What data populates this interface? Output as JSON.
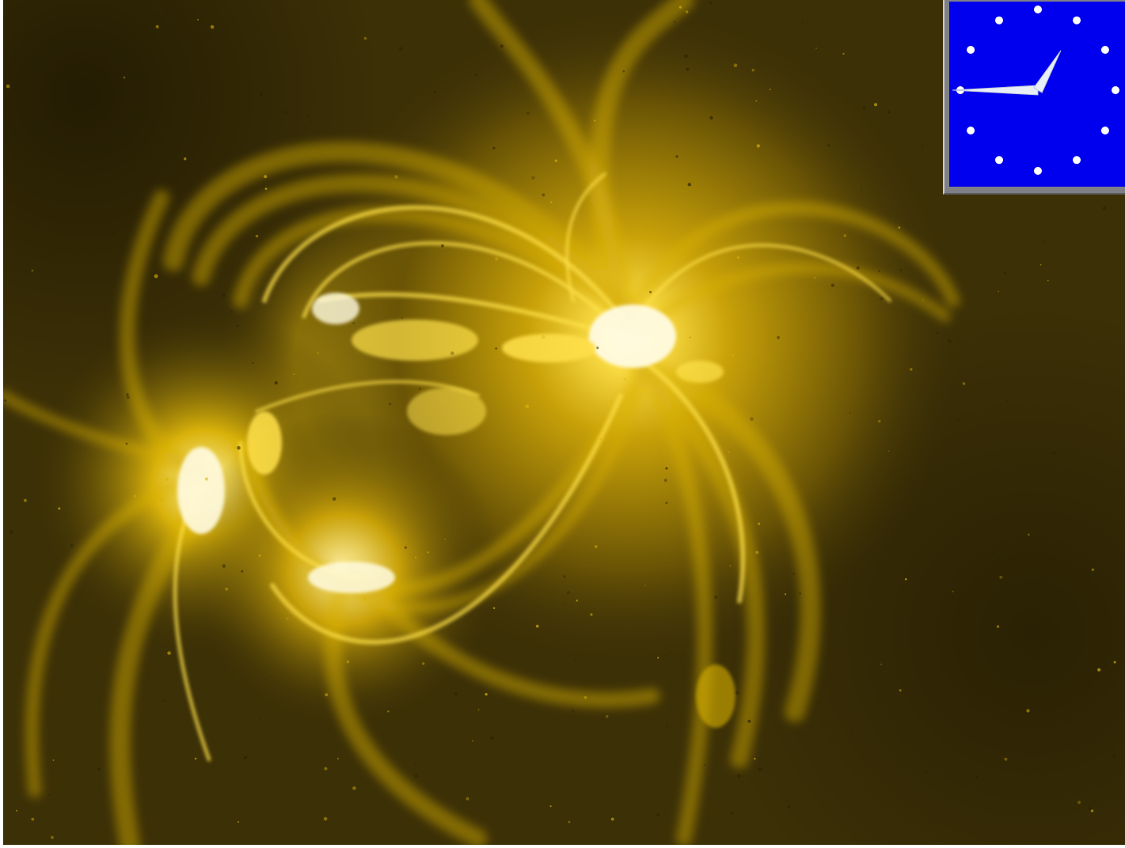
{
  "image": {
    "subject": "solar-active-region-coronal-loops",
    "palette": {
      "background": "#3c3006",
      "dark": "#2a2004",
      "mid": "#8a7008",
      "loop": "#d9b20a",
      "bright": "#ffe14a",
      "core": "#fffbe0"
    }
  },
  "clock": {
    "face_color": "#0000ee",
    "frame_color": "#7f7f86",
    "hand_color": "#e8eef8",
    "marker_color": "#ffffff",
    "marker_count": 12,
    "hour_hand_value": 9,
    "minute_hand_value": 5
  }
}
